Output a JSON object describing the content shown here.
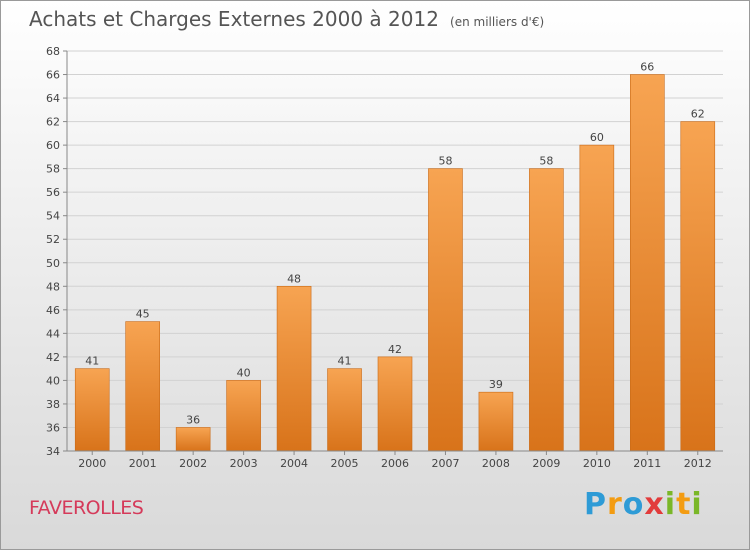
{
  "title": "Achats et Charges Externes 2000 à 2012",
  "unit": "(en milliers d'€)",
  "commune": "FAVEROLLES",
  "logo": {
    "letters": [
      {
        "char": "P",
        "color": "#2e9bd6"
      },
      {
        "char": "r",
        "color": "#f39c12"
      },
      {
        "char": "o",
        "color": "#2e9bd6"
      },
      {
        "char": "x",
        "color": "#e23b3b"
      },
      {
        "char": "i",
        "color": "#7ab728"
      },
      {
        "char": "t",
        "color": "#f39c12"
      },
      {
        "char": "i",
        "color": "#7ab728"
      }
    ]
  },
  "colors": {
    "bar_top": "#f7a452",
    "bar_bottom": "#d8731a",
    "bar_edge": "#c96a17",
    "grid": "#d2d2d2",
    "axis": "#888888"
  },
  "chart_data": {
    "type": "bar",
    "title": "Achats et Charges Externes 2000 à 2012",
    "subtitle": "(en milliers d'€)",
    "categories": [
      "2000",
      "2001",
      "2002",
      "2003",
      "2004",
      "2005",
      "2006",
      "2007",
      "2008",
      "2009",
      "2010",
      "2011",
      "2012"
    ],
    "values": [
      41,
      45,
      36,
      40,
      48,
      41,
      42,
      58,
      39,
      58,
      60,
      66,
      62
    ],
    "ylim": [
      34,
      68
    ],
    "yticks": [
      34,
      36,
      38,
      40,
      42,
      44,
      46,
      48,
      50,
      52,
      54,
      56,
      58,
      60,
      62,
      64,
      66,
      68
    ],
    "xlabel": "",
    "ylabel": "",
    "grid": true,
    "data_labels": true
  }
}
